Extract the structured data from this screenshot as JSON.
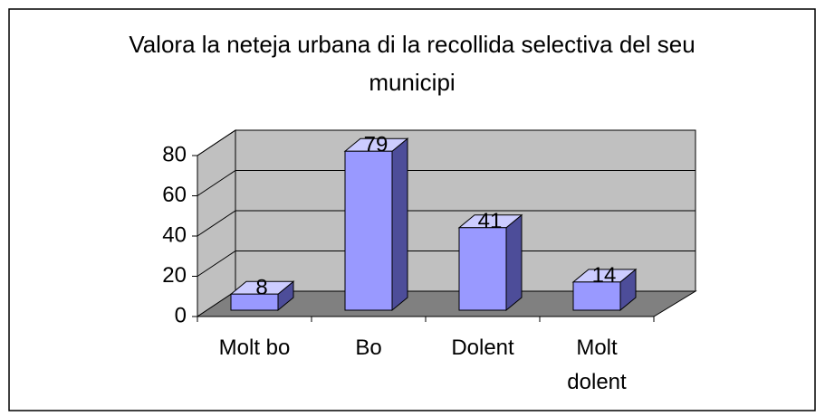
{
  "chart_data": {
    "type": "bar3d",
    "title": "Valora la neteja urbana di la recollida selectiva del seu municipi",
    "categories": [
      "Molt bo",
      "Bo",
      "Dolent",
      "Molt dolent"
    ],
    "values": [
      8,
      79,
      41,
      14
    ],
    "color": "#9999ff",
    "ylim": [
      0,
      80
    ],
    "yticks": [
      0,
      20,
      40,
      60,
      80
    ],
    "grid": true
  }
}
